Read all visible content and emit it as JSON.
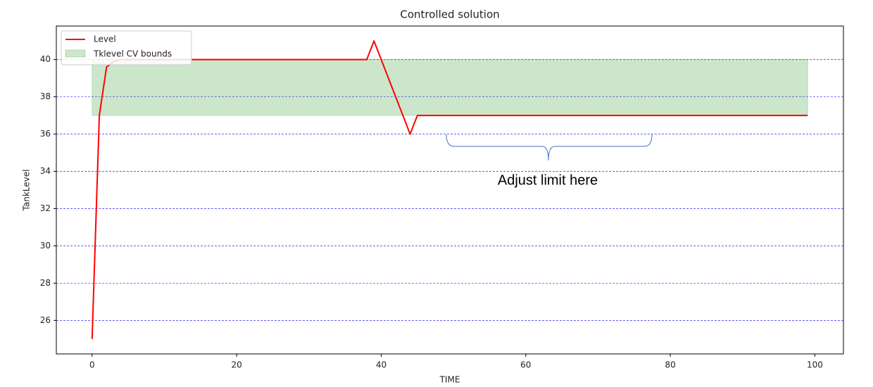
{
  "chart_data": {
    "type": "line",
    "title": "Controlled solution",
    "x_label": "TIME",
    "y_label": "TankLevel",
    "x": [
      0,
      1,
      2,
      3,
      4,
      38,
      39,
      44,
      45,
      99
    ],
    "series": [
      {
        "name": "Level",
        "color": "#ff0000",
        "values": [
          25,
          37,
          39.6,
          39.9,
          40,
          40,
          41,
          36,
          37,
          37
        ]
      }
    ],
    "band": {
      "name": "Tklevel CV bounds",
      "color": "#008000",
      "alpha": 0.2,
      "x": [
        0,
        99
      ],
      "lower": [
        37,
        37
      ],
      "upper": [
        40,
        40
      ]
    },
    "xlim": [
      -4.95,
      103.95
    ],
    "ylim": [
      24.2,
      41.8
    ],
    "xticks": [
      0,
      20,
      40,
      60,
      80,
      100
    ],
    "yticks": [
      26,
      28,
      30,
      32,
      34,
      36,
      38,
      40
    ],
    "grid": {
      "axis": "y",
      "color": "#0000ff",
      "style": "dashed"
    },
    "legend": "upper left",
    "annotations": [
      "Adjust limit here"
    ]
  }
}
